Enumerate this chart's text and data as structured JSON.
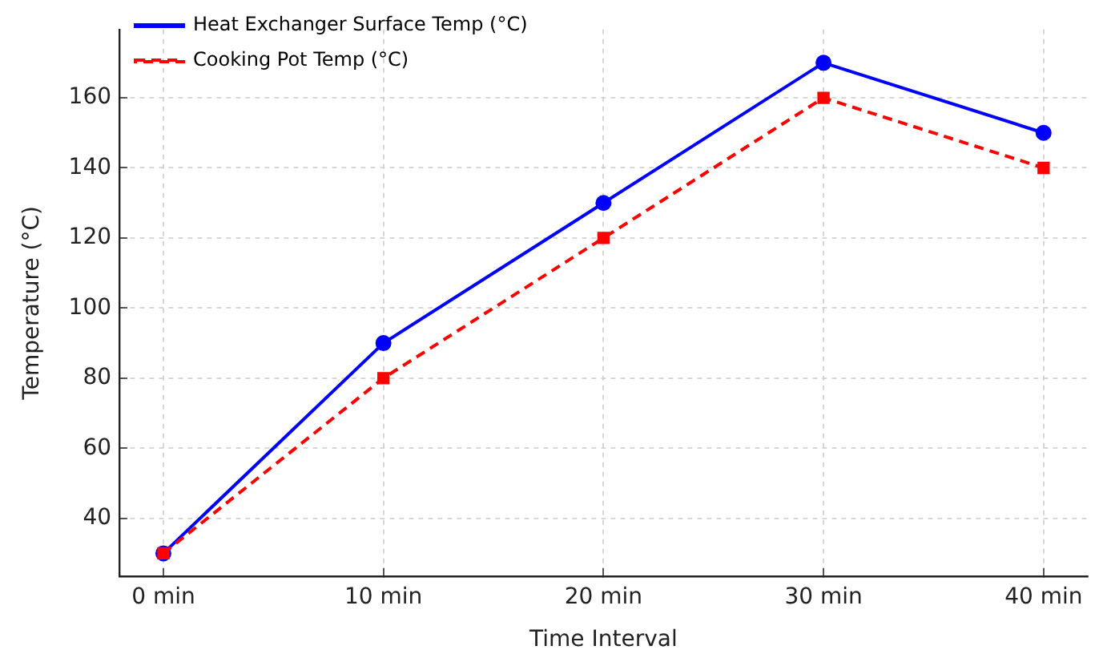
{
  "chart_data": {
    "type": "line",
    "xlabel": "Time Interval",
    "ylabel": "Temperature (°C)",
    "categories": [
      "0 min",
      "10 min",
      "20 min",
      "30 min",
      "40 min"
    ],
    "series": [
      {
        "name": "Heat Exchanger Surface Temp (°C)",
        "color": "#0000ff",
        "values": [
          30,
          90,
          130,
          170,
          150
        ],
        "marker": "circle",
        "line_style": "solid"
      },
      {
        "name": "Cooking Pot Temp (°C)",
        "color": "#ff0000",
        "values": [
          30,
          80,
          120,
          160,
          140
        ],
        "marker": "square",
        "line_style": "dashed"
      }
    ],
    "ylim": [
      23.5,
      179.5
    ],
    "yticks": [
      40,
      60,
      80,
      100,
      120,
      140,
      160
    ],
    "grid": true,
    "legend": "top left"
  }
}
